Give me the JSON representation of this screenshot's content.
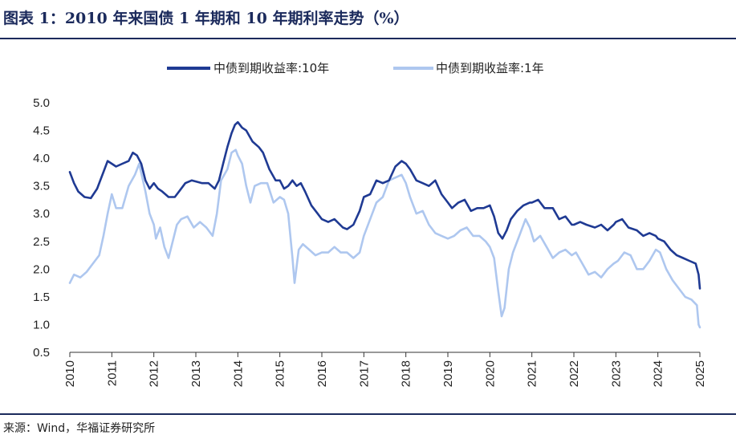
{
  "title": "图表 1：2010 年来国债 1 年期和 10 年期利率走势（%）",
  "source": "来源：Wind，华福证券研究所",
  "chart_data": {
    "type": "line",
    "ylim": [
      0.5,
      5.0
    ],
    "yticks": [
      "5.0",
      "4.5",
      "4.0",
      "3.5",
      "3.0",
      "2.5",
      "2.0",
      "1.5",
      "1.0",
      "0.5"
    ],
    "ytick_values": [
      5.0,
      4.5,
      4.0,
      3.5,
      3.0,
      2.5,
      2.0,
      1.5,
      1.0,
      0.5
    ],
    "xlim": [
      2010,
      2025
    ],
    "xticks": [
      "2010",
      "2011",
      "2012",
      "2013",
      "2014",
      "2015",
      "2016",
      "2017",
      "2018",
      "2019",
      "2020",
      "2021",
      "2022",
      "2023",
      "2024",
      "2025"
    ],
    "legend_position": "top-center",
    "series": [
      {
        "name": "中债到期收益率:10年",
        "color": "#1f3a93",
        "x": [
          2010.0,
          2010.1,
          2010.2,
          2010.35,
          2010.5,
          2010.65,
          2010.8,
          2010.9,
          2011.0,
          2011.1,
          2011.25,
          2011.4,
          2011.5,
          2011.6,
          2011.7,
          2011.8,
          2011.9,
          2012.0,
          2012.1,
          2012.2,
          2012.35,
          2012.5,
          2012.6,
          2012.75,
          2012.9,
          2013.0,
          2013.15,
          2013.3,
          2013.45,
          2013.55,
          2013.65,
          2013.75,
          2013.85,
          2013.93,
          2014.0,
          2014.1,
          2014.2,
          2014.35,
          2014.5,
          2014.6,
          2014.75,
          2014.9,
          2015.0,
          2015.1,
          2015.2,
          2015.3,
          2015.4,
          2015.5,
          2015.6,
          2015.75,
          2015.9,
          2016.0,
          2016.15,
          2016.3,
          2016.5,
          2016.6,
          2016.75,
          2016.9,
          2017.0,
          2017.15,
          2017.3,
          2017.45,
          2017.6,
          2017.75,
          2017.9,
          2018.0,
          2018.1,
          2018.25,
          2018.4,
          2018.55,
          2018.7,
          2018.85,
          2019.0,
          2019.1,
          2019.25,
          2019.4,
          2019.55,
          2019.7,
          2019.85,
          2020.0,
          2020.1,
          2020.2,
          2020.3,
          2020.4,
          2020.5,
          2020.65,
          2020.8,
          2020.95,
          2021.0,
          2021.15,
          2021.3,
          2021.5,
          2021.65,
          2021.8,
          2021.95,
          2022.0,
          2022.15,
          2022.3,
          2022.5,
          2022.65,
          2022.8,
          2022.95,
          2023.0,
          2023.15,
          2023.3,
          2023.5,
          2023.65,
          2023.8,
          2023.95,
          2024.0,
          2024.15,
          2024.3,
          2024.45,
          2024.6,
          2024.75,
          2024.9,
          2024.97,
          2025.0
        ],
        "values": [
          3.75,
          3.55,
          3.4,
          3.3,
          3.28,
          3.45,
          3.75,
          3.95,
          3.9,
          3.85,
          3.9,
          3.95,
          4.1,
          4.05,
          3.9,
          3.6,
          3.45,
          3.55,
          3.45,
          3.4,
          3.3,
          3.3,
          3.4,
          3.55,
          3.6,
          3.58,
          3.55,
          3.55,
          3.45,
          3.6,
          3.9,
          4.2,
          4.45,
          4.6,
          4.65,
          4.55,
          4.5,
          4.3,
          4.2,
          4.1,
          3.8,
          3.6,
          3.6,
          3.45,
          3.5,
          3.6,
          3.5,
          3.55,
          3.4,
          3.15,
          3.0,
          2.9,
          2.85,
          2.9,
          2.75,
          2.72,
          2.8,
          3.05,
          3.3,
          3.35,
          3.6,
          3.55,
          3.6,
          3.85,
          3.95,
          3.9,
          3.8,
          3.6,
          3.55,
          3.5,
          3.6,
          3.35,
          3.2,
          3.1,
          3.2,
          3.25,
          3.05,
          3.1,
          3.1,
          3.15,
          2.95,
          2.65,
          2.55,
          2.7,
          2.9,
          3.05,
          3.15,
          3.2,
          3.2,
          3.25,
          3.1,
          3.1,
          2.9,
          2.95,
          2.8,
          2.8,
          2.85,
          2.8,
          2.75,
          2.8,
          2.7,
          2.8,
          2.85,
          2.9,
          2.75,
          2.7,
          2.6,
          2.65,
          2.6,
          2.55,
          2.5,
          2.35,
          2.25,
          2.2,
          2.15,
          2.1,
          1.9,
          1.65
        ]
      },
      {
        "name": "中债到期收益率:1年",
        "color": "#aec7ef",
        "x": [
          2010.0,
          2010.1,
          2010.25,
          2010.4,
          2010.55,
          2010.7,
          2010.8,
          2010.9,
          2011.0,
          2011.1,
          2011.25,
          2011.4,
          2011.55,
          2011.65,
          2011.8,
          2011.9,
          2012.0,
          2012.05,
          2012.15,
          2012.25,
          2012.35,
          2012.45,
          2012.55,
          2012.65,
          2012.8,
          2012.95,
          2013.1,
          2013.25,
          2013.4,
          2013.5,
          2013.6,
          2013.75,
          2013.85,
          2013.95,
          2014.0,
          2014.1,
          2014.2,
          2014.3,
          2014.4,
          2014.55,
          2014.7,
          2014.85,
          2015.0,
          2015.1,
          2015.2,
          2015.3,
          2015.35,
          2015.45,
          2015.55,
          2015.7,
          2015.85,
          2016.0,
          2016.15,
          2016.3,
          2016.45,
          2016.6,
          2016.75,
          2016.9,
          2017.0,
          2017.15,
          2017.3,
          2017.45,
          2017.6,
          2017.75,
          2017.9,
          2018.0,
          2018.1,
          2018.25,
          2018.4,
          2018.55,
          2018.7,
          2018.85,
          2019.0,
          2019.15,
          2019.3,
          2019.45,
          2019.6,
          2019.75,
          2019.9,
          2020.0,
          2020.1,
          2020.2,
          2020.28,
          2020.35,
          2020.45,
          2020.55,
          2020.7,
          2020.85,
          2020.95,
          2021.05,
          2021.2,
          2021.35,
          2021.5,
          2021.65,
          2021.8,
          2021.95,
          2022.05,
          2022.2,
          2022.35,
          2022.5,
          2022.65,
          2022.8,
          2022.95,
          2023.05,
          2023.2,
          2023.35,
          2023.5,
          2023.65,
          2023.8,
          2023.95,
          2024.05,
          2024.2,
          2024.35,
          2024.5,
          2024.65,
          2024.8,
          2024.93,
          2024.97,
          2025.0
        ],
        "values": [
          1.75,
          1.9,
          1.85,
          1.95,
          2.1,
          2.25,
          2.6,
          3.0,
          3.35,
          3.1,
          3.1,
          3.5,
          3.7,
          3.9,
          3.4,
          3.0,
          2.8,
          2.55,
          2.75,
          2.4,
          2.2,
          2.5,
          2.8,
          2.9,
          2.95,
          2.75,
          2.85,
          2.75,
          2.6,
          3.0,
          3.6,
          3.8,
          4.1,
          4.15,
          4.05,
          3.9,
          3.5,
          3.2,
          3.5,
          3.55,
          3.55,
          3.2,
          3.3,
          3.25,
          3.0,
          2.2,
          1.75,
          2.35,
          2.45,
          2.35,
          2.25,
          2.3,
          2.3,
          2.4,
          2.3,
          2.3,
          2.2,
          2.3,
          2.6,
          2.9,
          3.2,
          3.3,
          3.6,
          3.65,
          3.7,
          3.55,
          3.3,
          3.0,
          3.05,
          2.8,
          2.65,
          2.6,
          2.55,
          2.6,
          2.7,
          2.75,
          2.6,
          2.6,
          2.5,
          2.4,
          2.2,
          1.6,
          1.15,
          1.3,
          2.0,
          2.3,
          2.6,
          2.9,
          2.75,
          2.5,
          2.6,
          2.4,
          2.2,
          2.3,
          2.35,
          2.25,
          2.3,
          2.1,
          1.9,
          1.95,
          1.85,
          2.0,
          2.1,
          2.15,
          2.3,
          2.25,
          2.0,
          2.0,
          2.15,
          2.35,
          2.3,
          2.0,
          1.8,
          1.65,
          1.5,
          1.45,
          1.35,
          1.0,
          0.95
        ]
      }
    ]
  }
}
